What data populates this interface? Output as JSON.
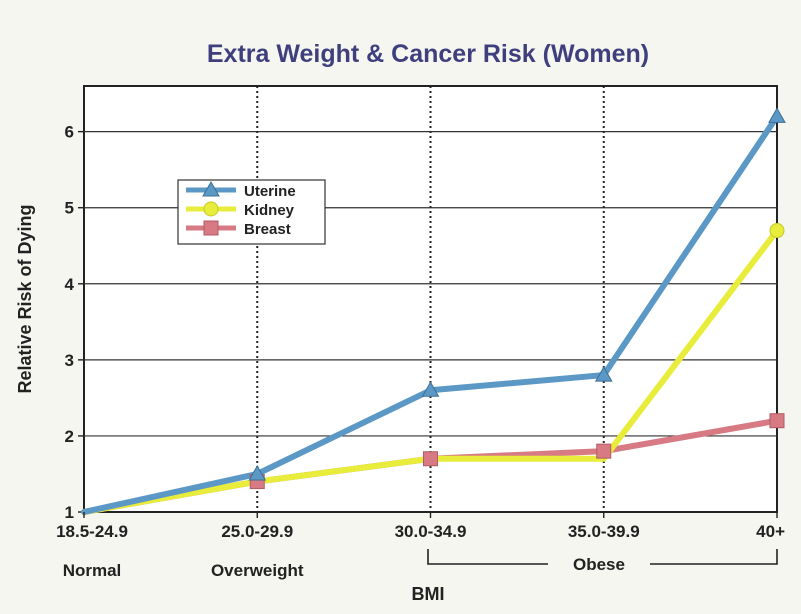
{
  "chart_data": {
    "type": "line",
    "title": "Extra Weight & Cancer Risk (Women)",
    "xlabel": "BMI",
    "ylabel": "Relative Risk of Dying",
    "categories": [
      "18.5-24.9",
      "25.0-29.9",
      "30.0-34.9",
      "35.0-39.9",
      "40+"
    ],
    "category_sublabels": [
      "Normal",
      "Overweight",
      "",
      "",
      ""
    ],
    "group_label": "Obese",
    "ylim": [
      1,
      6.6
    ],
    "yticks": [
      "1",
      "2",
      "3",
      "4",
      "5",
      "6"
    ],
    "grid": true,
    "legend_position": "upper-left",
    "series": [
      {
        "name": "Uterine",
        "values": [
          1.0,
          1.5,
          2.6,
          2.8,
          6.2
        ],
        "color": "#5b98c6",
        "marker": "triangle"
      },
      {
        "name": "Kidney",
        "values": [
          1.0,
          1.4,
          1.7,
          1.7,
          4.7
        ],
        "color": "#e8ec3a",
        "marker": "circle"
      },
      {
        "name": "Breast",
        "values": [
          1.0,
          1.4,
          1.7,
          1.8,
          2.2
        ],
        "color": "#d77a84",
        "marker": "square"
      }
    ]
  }
}
